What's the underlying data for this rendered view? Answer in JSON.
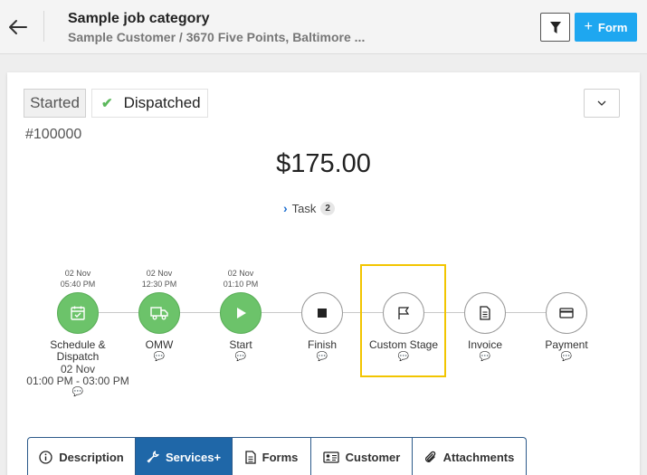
{
  "header": {
    "title": "Sample job category",
    "subtitle": "Sample Customer / 3670 Five Points, Baltimore ...",
    "form_button_label": "Form"
  },
  "job": {
    "status_started": "Started",
    "status_dispatched": "Dispatched",
    "number": "#100000",
    "amount": "$175.00",
    "task_label": "Task",
    "task_count": "2"
  },
  "stages": [
    {
      "label": "Schedule &",
      "label2": "Dispatch",
      "date": "02 Nov",
      "time": "05:40 PM",
      "sub_date": "02 Nov",
      "sub_time": "01:00 PM - 03:00 PM",
      "icon": "calendar-check-icon",
      "done": true
    },
    {
      "label": "OMW",
      "date": "02 Nov",
      "time": "12:30 PM",
      "icon": "truck-icon",
      "done": true
    },
    {
      "label": "Start",
      "date": "02 Nov",
      "time": "01:10 PM",
      "icon": "play-icon",
      "done": true
    },
    {
      "label": "Finish",
      "icon": "stop-icon",
      "done": false
    },
    {
      "label": "Custom Stage",
      "icon": "flag-icon",
      "done": false
    },
    {
      "label": "Invoice",
      "icon": "document-icon",
      "done": false
    },
    {
      "label": "Payment",
      "icon": "credit-card-icon",
      "done": false
    }
  ],
  "tabs": [
    {
      "label": "Description",
      "icon": "info-icon",
      "active": false
    },
    {
      "label": "Services+",
      "icon": "wrench-icon",
      "active": true
    },
    {
      "label": "Forms",
      "icon": "form-icon",
      "active": false
    },
    {
      "label": "Customer",
      "icon": "id-card-icon",
      "active": false
    },
    {
      "label": "Attachments",
      "icon": "paperclip-icon",
      "active": false
    }
  ],
  "colors": {
    "accent": "#1ea7f0",
    "done_stage": "#6cc36a",
    "highlight": "#f2c500",
    "active_tab": "#1f67a8"
  }
}
